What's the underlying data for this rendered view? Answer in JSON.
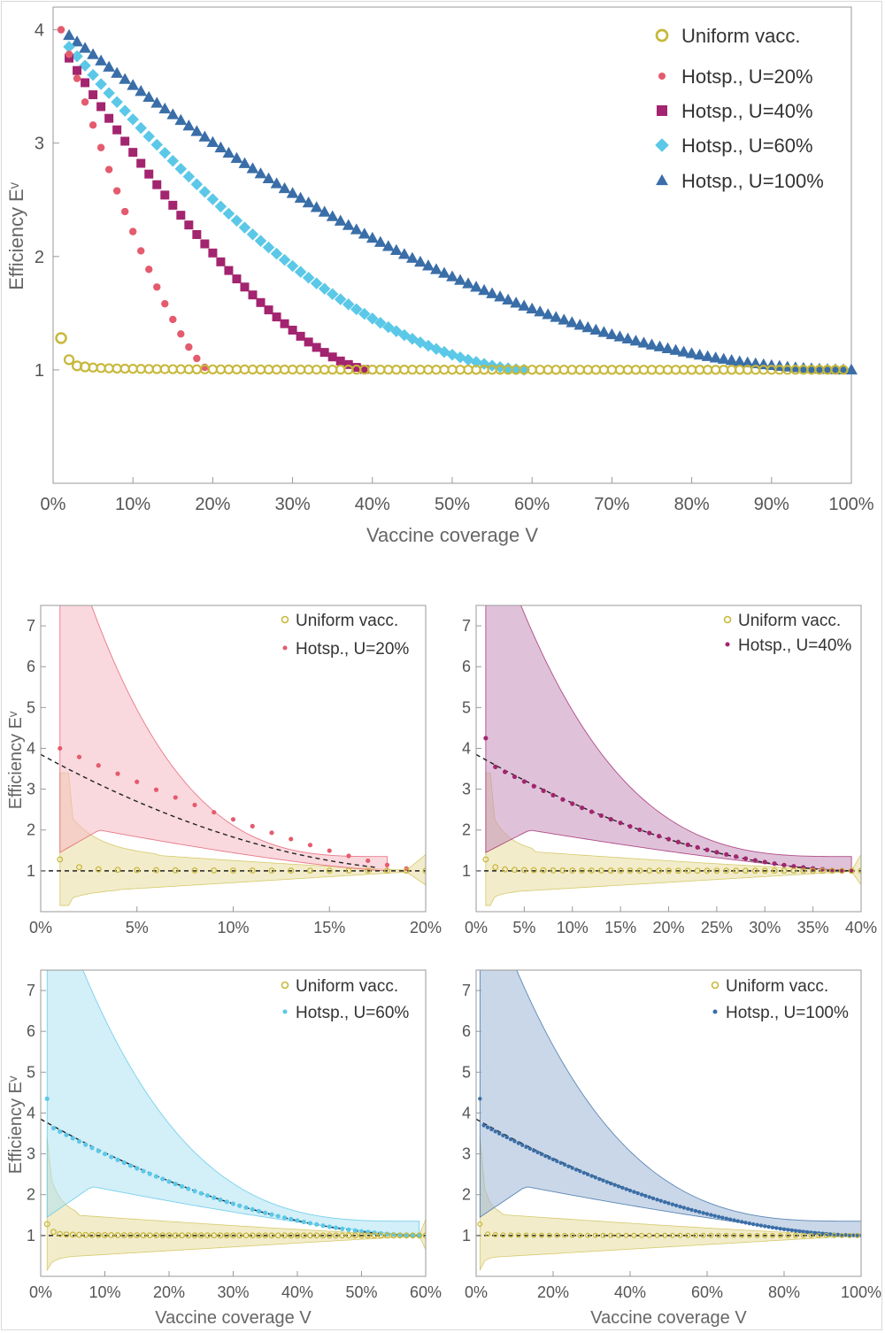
{
  "colors": {
    "uniform": "#c8b83a",
    "u20": "#e45b6e",
    "u40": "#a3246f",
    "u60": "#5bc8e8",
    "u100": "#3a6ea8",
    "band_uniform": "#e9dfa6",
    "band_u20": "#f6b9c2",
    "band_u40": "#c58fba",
    "band_u60": "#aee2f2",
    "band_u100": "#9db6d6",
    "frame": "#999999",
    "fit": "#222222"
  },
  "chart_data": [
    {
      "id": "main",
      "type": "scatter",
      "ylabel": "Efficiency Eᵛ",
      "xlabel": "Vaccine coverage V",
      "xlim": [
        0,
        100
      ],
      "ylim": [
        0,
        4.2
      ],
      "xticks": [
        "0%",
        "10%",
        "20%",
        "30%",
        "40%",
        "50%",
        "60%",
        "70%",
        "80%",
        "90%",
        "100%"
      ],
      "yticks": [
        "1",
        "2",
        "3",
        "4"
      ],
      "legend": [
        "Uniform vacc.",
        "Hotsp., U=20%",
        "Hotsp., U=40%",
        "Hotsp., U=60%",
        "Hotsp., U=100%"
      ],
      "series": [
        {
          "name": "Uniform vacc.",
          "x_start": 1,
          "x_end": 99,
          "y_at_1": 1.28,
          "y_at_2": 1.09,
          "y_floor": 1.0
        },
        {
          "name": "Hotsp., U=20%",
          "x_start": 1,
          "x_end": 19,
          "y_at_start": 4.0
        },
        {
          "name": "Hotsp., U=40%",
          "x_start": 2,
          "x_end": 39,
          "y_at_start": 3.75
        },
        {
          "name": "Hotsp., U=60%",
          "x_start": 2,
          "x_end": 59,
          "y_at_start": 3.85
        },
        {
          "name": "Hotsp., U=100%",
          "x_start": 2,
          "x_end": 100,
          "y_at_start": 3.95
        }
      ]
    },
    {
      "id": "u20",
      "type": "scatter",
      "ylabel": "Efficiency Eᵛ",
      "xlabel": "",
      "xlim": [
        0,
        20
      ],
      "ylim": [
        0,
        7.5
      ],
      "xticks": [
        "0%",
        "5%",
        "10%",
        "15%",
        "20%"
      ],
      "yticks": [
        "1",
        "2",
        "3",
        "4",
        "5",
        "6",
        "7"
      ],
      "legend": [
        "Uniform vacc.",
        "Hotsp., U=20%"
      ],
      "fit_start": 3.85,
      "hotspot_start": 4.0
    },
    {
      "id": "u40",
      "type": "scatter",
      "ylabel": "",
      "xlabel": "",
      "xlim": [
        0,
        40
      ],
      "ylim": [
        0,
        7.5
      ],
      "xticks": [
        "0%",
        "5%",
        "10%",
        "15%",
        "20%",
        "25%",
        "30%",
        "35%",
        "40%"
      ],
      "yticks": [
        "1",
        "2",
        "3",
        "4",
        "5",
        "6",
        "7"
      ],
      "legend": [
        "Uniform vacc.",
        "Hotsp., U=40%"
      ],
      "fit_start": 3.85,
      "hotspot_start": 4.25
    },
    {
      "id": "u60",
      "type": "scatter",
      "ylabel": "Efficiency Eᵛ",
      "xlabel": "Vaccine coverage V",
      "xlim": [
        0,
        60
      ],
      "ylim": [
        0,
        7.5
      ],
      "xticks": [
        "0%",
        "10%",
        "20%",
        "30%",
        "40%",
        "50%",
        "60%"
      ],
      "yticks": [
        "1",
        "2",
        "3",
        "4",
        "5",
        "6",
        "7"
      ],
      "legend": [
        "Uniform vacc.",
        "Hotsp., U=60%"
      ],
      "fit_start": 3.85,
      "hotspot_start": 4.35
    },
    {
      "id": "u100",
      "type": "scatter",
      "ylabel": "",
      "xlabel": "Vaccine coverage V",
      "xlim": [
        0,
        100
      ],
      "ylim": [
        0,
        7.5
      ],
      "xticks": [
        "0%",
        "20%",
        "40%",
        "60%",
        "80%",
        "100%"
      ],
      "yticks": [
        "1",
        "2",
        "3",
        "4",
        "5",
        "6",
        "7"
      ],
      "legend": [
        "Uniform vacc.",
        "Hotsp., U=100%"
      ],
      "fit_start": 3.85,
      "hotspot_start": 4.35
    }
  ]
}
